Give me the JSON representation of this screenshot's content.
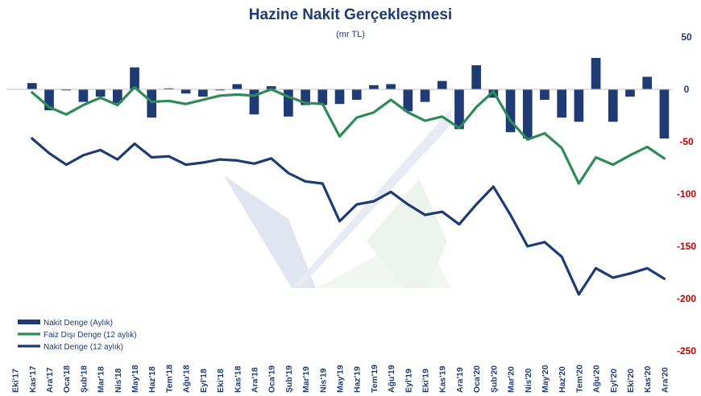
{
  "chart_data": {
    "type": "bar+line",
    "title": "Hazine Nakit Gerçekleşmesi",
    "subtitle": "(mr TL)",
    "categories": [
      "Eki'17",
      "Kas'17",
      "Ara'17",
      "Oca'18",
      "Şub'18",
      "Mar'18",
      "Nis'18",
      "May'18",
      "Haz'18",
      "Tem'18",
      "Ağu'18",
      "Eyl'18",
      "Eki'18",
      "Kas'18",
      "Ara'18",
      "Oca'19",
      "Şub'19",
      "Mar'19",
      "Nis'19",
      "May'19",
      "Haz'19",
      "Tem'19",
      "Ağu'19",
      "Eyl'19",
      "Eki'19",
      "Kas'19",
      "Ara'19",
      "Oca'20",
      "Şub'20",
      "Mar'20",
      "Nis'20",
      "May'20",
      "Haz'20",
      "Tem'20",
      "Ağu'20",
      "Eyl'20",
      "Eki'20",
      "Kas'20",
      "Ara'20"
    ],
    "series": [
      {
        "name": "Nakit Denge (Aylık)",
        "type": "bar",
        "color": "#1f3b73",
        "values": [
          0,
          6,
          -20,
          -1,
          -12,
          -7,
          -13,
          21,
          -27,
          1,
          -4,
          -7,
          -1,
          5,
          -24,
          3,
          -26,
          -15,
          -15,
          -14,
          -10,
          4,
          5,
          -21,
          -12,
          8,
          -38,
          23,
          -8,
          -41,
          -47,
          -10,
          -27,
          -31,
          30,
          -31,
          -7,
          12,
          -47
        ]
      },
      {
        "name": "Faiz Dışı Denge (12 aylık)",
        "type": "line",
        "color": "#2e8b57",
        "values": [
          null,
          -3,
          -17,
          -24,
          -15,
          -8,
          -15,
          2,
          -12,
          -11,
          -14,
          -10,
          -6,
          -5,
          -6,
          0,
          -7,
          -13,
          -14,
          -45,
          -27,
          -22,
          -10,
          -22,
          -30,
          -26,
          -37,
          -17,
          -2,
          -30,
          -48,
          -42,
          -56,
          -90,
          -65,
          -72,
          -63,
          -55,
          -66
        ]
      },
      {
        "name": "Nakit Denge (12 aylık)",
        "type": "line",
        "color": "#1f3b73",
        "values": [
          null,
          -47,
          -61,
          -72,
          -63,
          -58,
          -67,
          -52,
          -65,
          -64,
          -72,
          -70,
          -67,
          -68,
          -71,
          -66,
          -80,
          -88,
          -90,
          -126,
          -110,
          -107,
          -98,
          -110,
          -120,
          -117,
          -129,
          -110,
          -93,
          -120,
          -150,
          -146,
          -160,
          -196,
          -171,
          -180,
          -176,
          -171,
          -181
        ]
      }
    ],
    "y_axis": {
      "position": "right",
      "ylim": [
        -250,
        50
      ],
      "ticks": [
        50,
        0,
        -50,
        -100,
        -150,
        -200,
        -250
      ],
      "negative_tick_color": "#c00000",
      "positive_tick_color": "#1f3b73"
    },
    "legend": "bottom-left",
    "grid": false
  }
}
